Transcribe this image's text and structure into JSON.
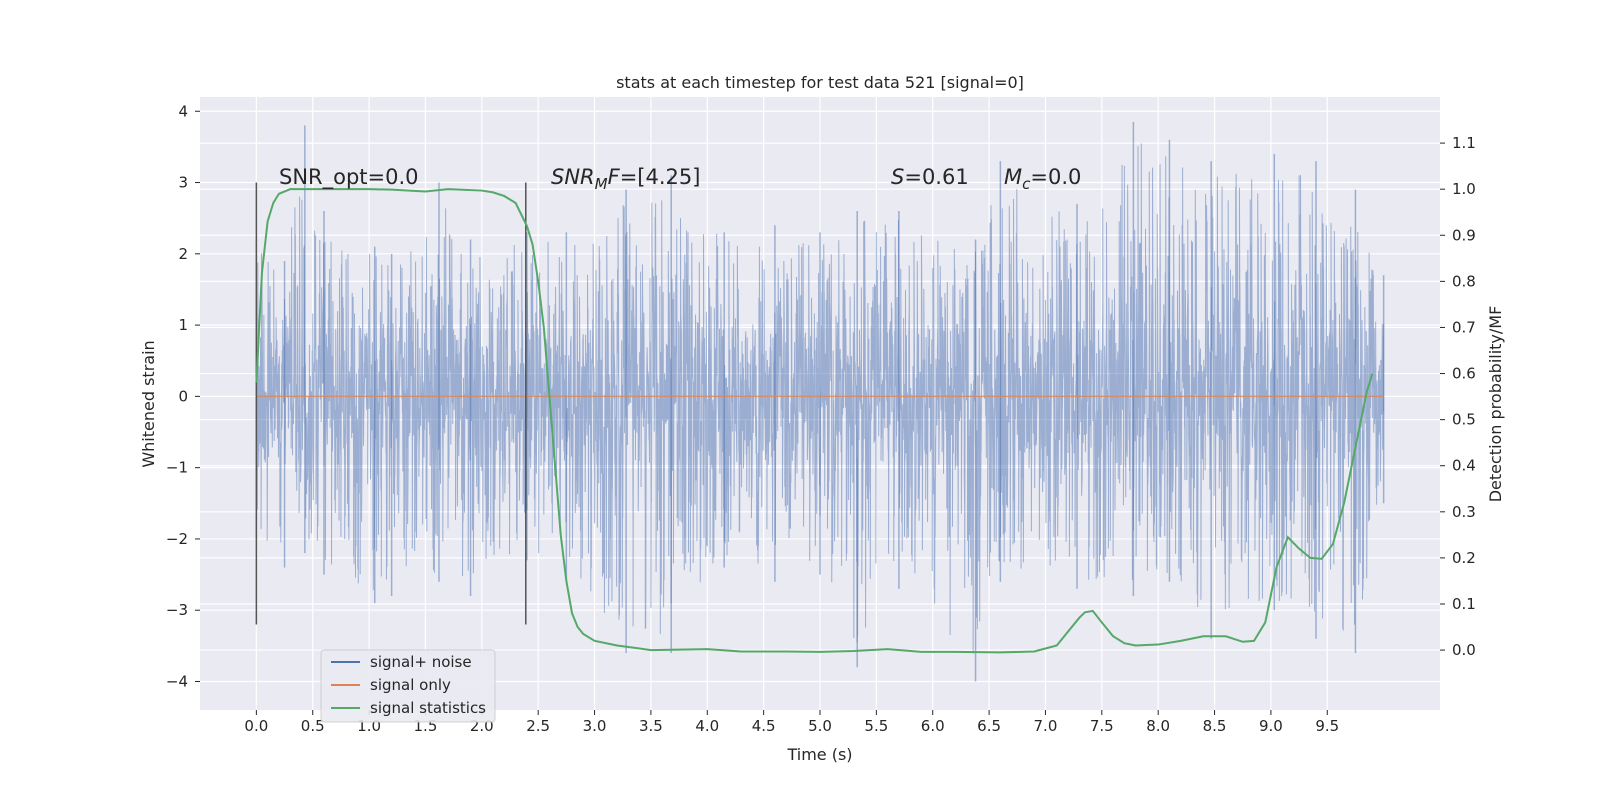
{
  "chart_data": {
    "type": "line",
    "title": "stats at each timestep for test data 521 [signal=0]",
    "xlabel": "Time (s)",
    "ylabel_left": "Whitened strain",
    "ylabel_right": "Detection probability/MF",
    "xlim": [
      -0.5,
      10.5
    ],
    "ylim_left": [
      -4.4,
      4.2
    ],
    "ylim_right": [
      -0.13,
      1.2
    ],
    "x_ticks": [
      0.0,
      0.5,
      1.0,
      1.5,
      2.0,
      2.5,
      3.0,
      3.5,
      4.0,
      4.5,
      5.0,
      5.5,
      6.0,
      6.5,
      7.0,
      7.5,
      8.0,
      8.5,
      9.0,
      9.5
    ],
    "x_tick_labels": [
      "0.0",
      "0.5",
      "1.0",
      "1.5",
      "2.0",
      "2.5",
      "3.0",
      "3.5",
      "4.0",
      "4.5",
      "5.0",
      "5.5",
      "6.0",
      "6.5",
      "7.0",
      "7.5",
      "8.0",
      "8.5",
      "9.0",
      "9.5"
    ],
    "y_left_ticks": [
      -4,
      -3,
      -2,
      -1,
      0,
      1,
      2,
      3,
      4
    ],
    "y_left_tick_labels": [
      "−4",
      "−3",
      "−2",
      "−1",
      "0",
      "1",
      "2",
      "3",
      "4"
    ],
    "y_right_ticks": [
      0.0,
      0.1,
      0.2,
      0.3,
      0.4,
      0.5,
      0.6,
      0.7,
      0.8,
      0.9,
      1.0,
      1.1
    ],
    "y_right_tick_labels": [
      "0.0",
      "0.1",
      "0.2",
      "0.3",
      "0.4",
      "0.5",
      "0.6",
      "0.7",
      "0.8",
      "0.9",
      "1.0",
      "1.1"
    ],
    "grid": true,
    "legend_position": "lower-left",
    "series": [
      {
        "name": "signal+ noise",
        "axis": "left",
        "color": "#4c72b0",
        "opacity": 0.5,
        "x_range": [
          0.0,
          10.0
        ],
        "envelope_peak_samples": [
          [
            0.0,
            2.2,
            -2.0
          ],
          [
            0.25,
            1.9,
            -2.4
          ],
          [
            0.43,
            3.8,
            -2.2
          ],
          [
            0.6,
            2.6,
            -2.5
          ],
          [
            1.05,
            2.1,
            -2.9
          ],
          [
            1.2,
            2.0,
            -2.8
          ],
          [
            1.62,
            3.0,
            -2.6
          ],
          [
            1.9,
            2.2,
            -2.8
          ],
          [
            2.4,
            2.3,
            -2.3
          ],
          [
            2.75,
            2.3,
            -2.6
          ],
          [
            3.28,
            2.9,
            -3.6
          ],
          [
            3.68,
            3.1,
            -3.6
          ],
          [
            4.15,
            2.3,
            -2.4
          ],
          [
            4.6,
            2.4,
            -2.6
          ],
          [
            5.0,
            2.3,
            -2.5
          ],
          [
            5.33,
            2.6,
            -3.8
          ],
          [
            5.7,
            2.6,
            -2.7
          ],
          [
            6.38,
            2.2,
            -4.0
          ],
          [
            6.6,
            3.3,
            -2.6
          ],
          [
            7.28,
            2.7,
            -2.7
          ],
          [
            7.78,
            3.85,
            -2.8
          ],
          [
            8.1,
            3.6,
            -2.6
          ],
          [
            8.47,
            3.3,
            -3.4
          ],
          [
            9.03,
            3.4,
            -3.0
          ],
          [
            9.4,
            3.3,
            -3.4
          ],
          [
            9.75,
            2.9,
            -3.6
          ],
          [
            10.0,
            1.7,
            -1.5
          ]
        ]
      },
      {
        "name": "signal only",
        "axis": "left",
        "color": "#dd8452",
        "x": [
          0.0,
          10.0
        ],
        "y": [
          0.0,
          0.0
        ]
      },
      {
        "name": "signal statistics",
        "axis": "right",
        "color": "#55a868",
        "x": [
          0.0,
          0.05,
          0.1,
          0.15,
          0.2,
          0.3,
          0.5,
          0.8,
          1.0,
          1.2,
          1.5,
          1.7,
          2.0,
          2.1,
          2.2,
          2.3,
          2.4,
          2.45,
          2.5,
          2.55,
          2.6,
          2.65,
          2.7,
          2.75,
          2.8,
          2.85,
          2.9,
          3.0,
          3.2,
          3.5,
          4.0,
          4.3,
          4.7,
          5.0,
          5.3,
          5.6,
          5.9,
          6.2,
          6.6,
          6.9,
          7.1,
          7.2,
          7.3,
          7.35,
          7.42,
          7.5,
          7.6,
          7.7,
          7.8,
          8.0,
          8.2,
          8.4,
          8.6,
          8.75,
          8.85,
          8.95,
          9.05,
          9.15,
          9.25,
          9.35,
          9.45,
          9.55,
          9.65,
          9.75,
          9.85,
          9.9
        ],
        "y": [
          0.58,
          0.82,
          0.93,
          0.97,
          0.99,
          1.0,
          1.0,
          1.0,
          1.0,
          0.999,
          0.995,
          1.0,
          0.997,
          0.993,
          0.985,
          0.97,
          0.92,
          0.88,
          0.8,
          0.7,
          0.55,
          0.4,
          0.25,
          0.15,
          0.08,
          0.05,
          0.035,
          0.02,
          0.01,
          0.0,
          0.002,
          -0.003,
          -0.003,
          -0.004,
          -0.002,
          0.002,
          -0.004,
          -0.004,
          -0.005,
          -0.003,
          0.01,
          0.04,
          0.07,
          0.082,
          0.085,
          0.06,
          0.03,
          0.015,
          0.01,
          0.012,
          0.02,
          0.03,
          0.03,
          0.018,
          0.02,
          0.06,
          0.18,
          0.245,
          0.22,
          0.2,
          0.198,
          0.23,
          0.32,
          0.44,
          0.56,
          0.6
        ]
      }
    ],
    "vertical_lines": [
      {
        "x": 0.0,
        "ymin": -3.2,
        "ymax": 3.0,
        "color": "#555555"
      },
      {
        "x": 2.39,
        "ymin": -3.2,
        "ymax": 3.0,
        "color": "#555555"
      }
    ],
    "annotations": [
      {
        "id": "snr_opt",
        "text": "SNR_opt=0.0",
        "x": 0.2,
        "y": 3.0
      },
      {
        "id": "snr_mf",
        "text_main": "SNR",
        "text_sub": "M",
        "text_tail": "F=[4.25]",
        "x": 2.6,
        "y": 3.0
      },
      {
        "id": "s_val",
        "text_main": "S",
        "text_tail": "=0.61",
        "x": 5.6,
        "y": 3.0
      },
      {
        "id": "mc",
        "text_main": "M",
        "text_sub": "c",
        "text_tail": "=0.0",
        "x": 6.6,
        "y": 3.0
      }
    ],
    "legend": [
      {
        "label": "signal+ noise",
        "color": "#4c72b0"
      },
      {
        "label": "signal only",
        "color": "#dd8452"
      },
      {
        "label": "signal statistics",
        "color": "#55a868"
      }
    ]
  }
}
